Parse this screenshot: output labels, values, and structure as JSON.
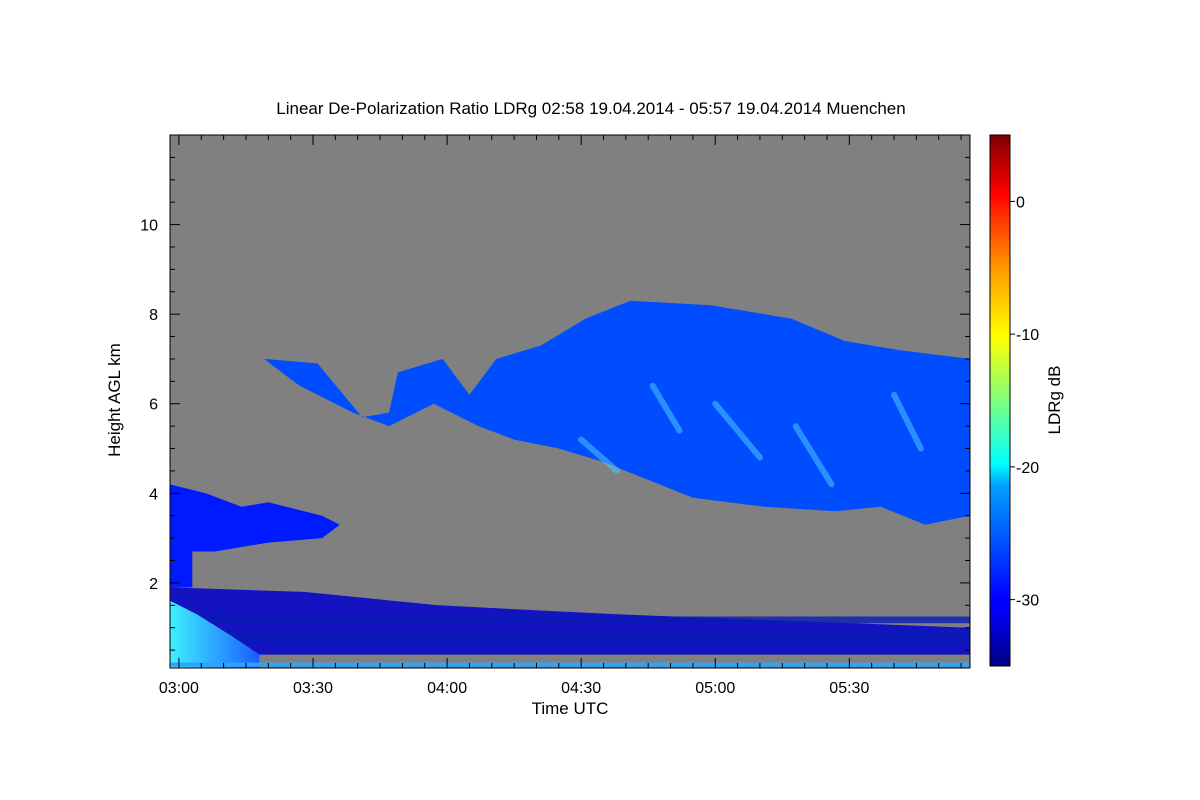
{
  "chart_data": {
    "type": "heatmap",
    "title": "Linear De-Polarization Ratio LDRg   02:58 19.04.2014 - 05:57 19.04.2014 Muenchen",
    "xlabel": "Time UTC",
    "ylabel": "Height AGL km",
    "x_ticks": [
      "03:00",
      "03:30",
      "04:00",
      "04:30",
      "05:00",
      "05:30"
    ],
    "x_tick_minutes": [
      180,
      210,
      240,
      270,
      300,
      330
    ],
    "xlim_minutes": [
      178,
      357
    ],
    "y_ticks": [
      2,
      4,
      6,
      8,
      10
    ],
    "ylim": [
      0.1,
      12.0
    ],
    "colorbar": {
      "label": "LDRg dB",
      "ticks": [
        0,
        -10,
        -20,
        -30
      ],
      "range": [
        -35,
        5
      ],
      "colormap": "jet"
    },
    "background_color": "#808080",
    "regions": [
      {
        "feature": "mid-level cloud band",
        "x_start": 199,
        "x_end": 357,
        "y_bottom": 3.3,
        "y_top": 8.3,
        "ldr_db_typical": -27
      },
      {
        "feature": "low cloud layer",
        "x_start": 178,
        "x_end": 216,
        "y_bottom": 2.7,
        "y_top": 4.2,
        "ldr_db_typical": -29
      },
      {
        "feature": "boundary layer returns",
        "x_start": 178,
        "x_end": 357,
        "y_bottom": 0.4,
        "y_top": 1.9,
        "ldr_db_typical": -32
      },
      {
        "feature": "near-surface enhanced depolarization",
        "x_start": 178,
        "x_end": 198,
        "y_bottom": 0.1,
        "y_top": 1.2,
        "ldr_db_typical": -22
      }
    ],
    "grid": false,
    "legend": "colorbar-right"
  }
}
